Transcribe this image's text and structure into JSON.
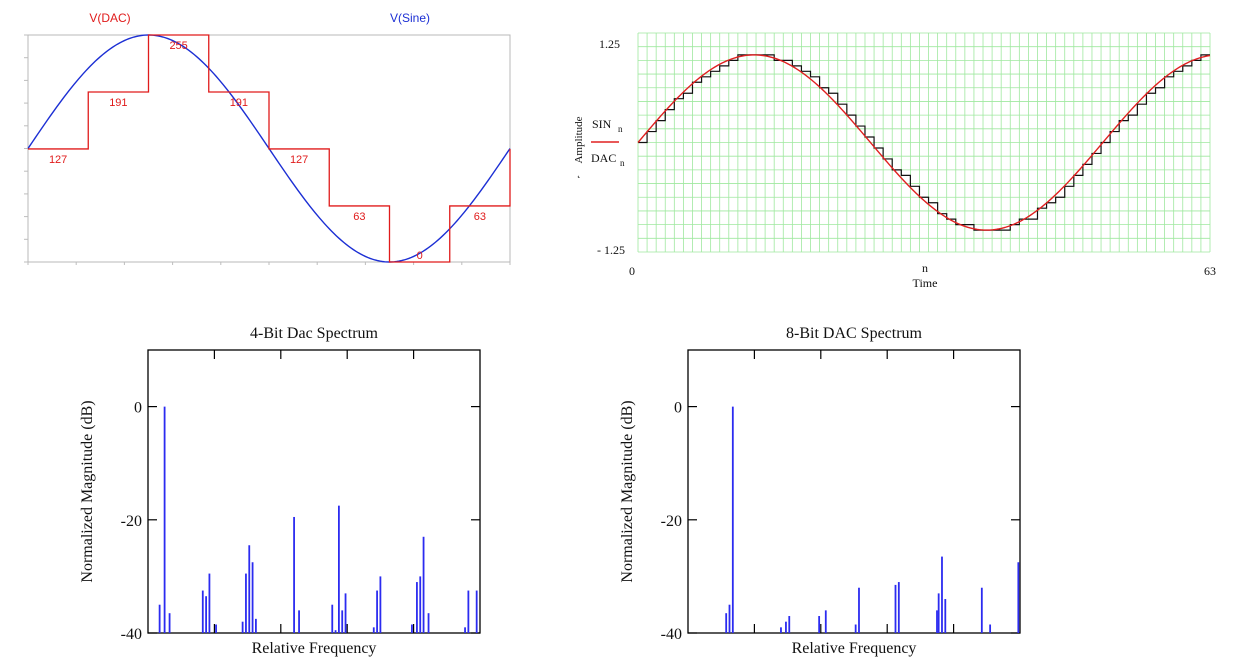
{
  "chart_data": [
    {
      "type": "line",
      "panel": "top-left",
      "legend": {
        "dac_label": "V(DAC)",
        "sine_label": "V(Sine)",
        "dac_color": "#e01b1b",
        "sine_color": "#1c2fd4"
      },
      "ylim": [
        0,
        255
      ],
      "steps": [
        {
          "x0": 0.0,
          "x1": 1.2,
          "value": 127,
          "label": "127"
        },
        {
          "x0": 1.2,
          "x1": 2.4,
          "value": 191,
          "label": "191"
        },
        {
          "x0": 2.4,
          "x1": 3.6,
          "value": 255,
          "label": "255"
        },
        {
          "x0": 3.6,
          "x1": 4.8,
          "value": 191,
          "label": "191"
        },
        {
          "x0": 4.8,
          "x1": 6.0,
          "value": 127,
          "label": "127"
        },
        {
          "x0": 6.0,
          "x1": 7.2,
          "value": 63,
          "label": "63"
        },
        {
          "x0": 7.2,
          "x1": 8.4,
          "value": 0,
          "label": "0"
        },
        {
          "x0": 8.4,
          "x1": 9.6,
          "value": 63,
          "label": "63"
        }
      ],
      "xlim": [
        0,
        9.6
      ],
      "sine": {
        "offset": 127.5,
        "amplitude": 127.5,
        "period": 9.6
      },
      "grid": false
    },
    {
      "type": "line",
      "panel": "top-right",
      "series": [
        {
          "name": "SIN",
          "color": "#e02020"
        },
        {
          "name": "DAC",
          "color": "#111111"
        }
      ],
      "legend": {
        "sin_label": "SIN",
        "sin_sub": "n",
        "dac_label": "DAC",
        "dac_sub": "n"
      },
      "ylabel": "Amplitude",
      "xlabel": "Time",
      "x_var": "n",
      "xlim": [
        0,
        63
      ],
      "ylim": [
        -1.25,
        1.25
      ],
      "xticks": [
        "0",
        "63"
      ],
      "yticks": [
        "1.25",
        "- 1.25"
      ],
      "cycles": 1.25,
      "points": 64,
      "grid_color": "#9fe89f",
      "grid": true
    },
    {
      "type": "bar",
      "panel": "bottom-left",
      "title": "4-Bit Dac Spectrum",
      "xlabel": "Relative Frequency",
      "ylabel": "Normalized Magnitude (dB)",
      "ylim": [
        -40,
        10
      ],
      "yticks": [
        "0",
        "-20",
        "-40"
      ],
      "ytick_values": [
        0,
        -20,
        -40
      ],
      "xlim": [
        0,
        100
      ],
      "color": "#2b2bf0",
      "lines": [
        [
          3.5,
          -35
        ],
        [
          5,
          0
        ],
        [
          6.5,
          -36.5
        ],
        [
          16.5,
          -32.5
        ],
        [
          17.5,
          -33.5
        ],
        [
          18.5,
          -29.5
        ],
        [
          20.5,
          -38.5
        ],
        [
          28.5,
          -38
        ],
        [
          29.5,
          -29.5
        ],
        [
          30.5,
          -24.5
        ],
        [
          31.5,
          -27.5
        ],
        [
          32.5,
          -37.5
        ],
        [
          44,
          -19.5
        ],
        [
          45.5,
          -36
        ],
        [
          55.5,
          -35
        ],
        [
          56.5,
          -39.5
        ],
        [
          57.5,
          -17.5
        ],
        [
          58.5,
          -36
        ],
        [
          59.5,
          -33
        ],
        [
          68,
          -39
        ],
        [
          69,
          -32.5
        ],
        [
          70,
          -30
        ],
        [
          79.5,
          -38.5
        ],
        [
          81,
          -31
        ],
        [
          82,
          -30
        ],
        [
          83,
          -23
        ],
        [
          84.5,
          -36.5
        ],
        [
          95.5,
          -39
        ],
        [
          96.5,
          -32.5
        ],
        [
          99,
          -32.5
        ]
      ],
      "grid": false
    },
    {
      "type": "bar",
      "panel": "bottom-right",
      "title": "8-Bit DAC Spectrum",
      "xlabel": "Relative Frequency",
      "ylabel": "Normalized Magnitude (dB)",
      "ylim": [
        -40,
        10
      ],
      "yticks": [
        "0",
        "-20",
        "-40"
      ],
      "ytick_values": [
        0,
        -20,
        -40
      ],
      "xlim": [
        0,
        100
      ],
      "color": "#2b2bf0",
      "lines": [
        [
          11.5,
          -36.5
        ],
        [
          12.5,
          -35
        ],
        [
          13.5,
          0
        ],
        [
          28,
          -39
        ],
        [
          29.5,
          -38
        ],
        [
          30.5,
          -37
        ],
        [
          39.5,
          -37
        ],
        [
          41.5,
          -36
        ],
        [
          50.5,
          -38.5
        ],
        [
          51.5,
          -32
        ],
        [
          62.5,
          -31.5
        ],
        [
          63.5,
          -31
        ],
        [
          75,
          -36
        ],
        [
          75.5,
          -33
        ],
        [
          76.5,
          -26.5
        ],
        [
          77.5,
          -34
        ],
        [
          88.5,
          -32
        ],
        [
          91,
          -38.5
        ],
        [
          99.5,
          -27.5
        ]
      ],
      "grid": false
    }
  ]
}
